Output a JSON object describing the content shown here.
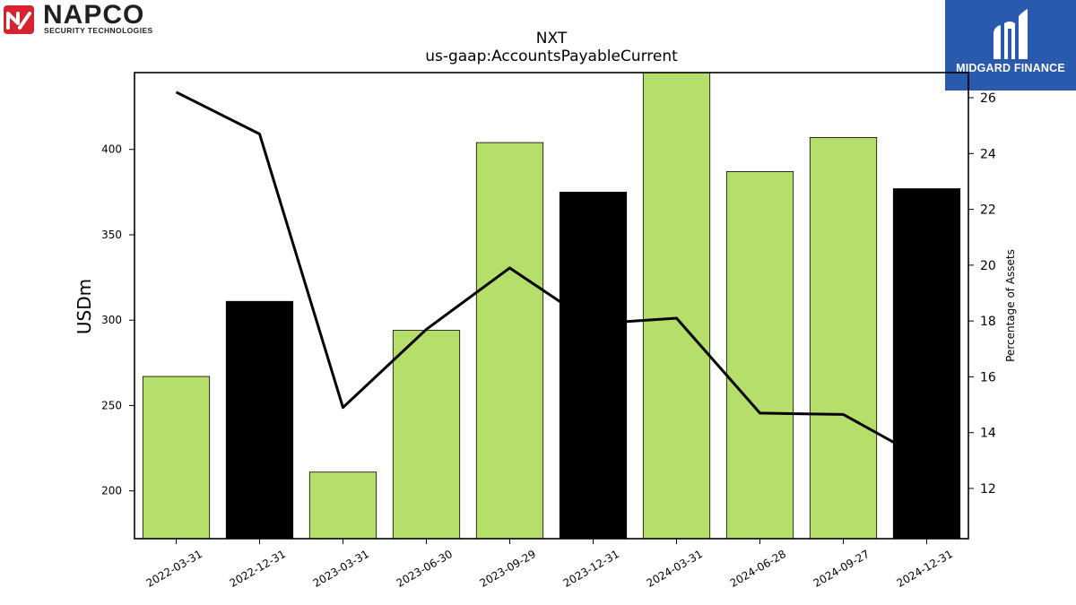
{
  "logos": {
    "left": {
      "name": "NAPCO",
      "tagline": "SECURITY TECHNOLOGIES"
    },
    "right": {
      "name": "MIDGARD FINANCE"
    }
  },
  "chart_data": {
    "type": "bar",
    "title": "NXT",
    "subtitle": "us-gaap:AccountsPayableCurrent",
    "ylabel": "USDm",
    "y2label": "Percentage of Assets",
    "categories": [
      "2022-03-31",
      "2022-12-31",
      "2023-03-31",
      "2023-06-30",
      "2023-09-29",
      "2023-12-31",
      "2024-03-31",
      "2024-06-28",
      "2024-09-27",
      "2024-12-31"
    ],
    "values": [
      267,
      311,
      211,
      294,
      404,
      375,
      448,
      387,
      407,
      377
    ],
    "bar_colors": [
      "#b5de6a",
      "#000000",
      "#b5de6a",
      "#b5de6a",
      "#b5de6a",
      "#000000",
      "#b5de6a",
      "#b5de6a",
      "#b5de6a",
      "#000000"
    ],
    "line_values": [
      26.2,
      24.7,
      14.9,
      17.7,
      19.9,
      17.9,
      18.1,
      14.7,
      14.65,
      13.0
    ],
    "ylim": [
      172,
      445
    ],
    "y2lim": [
      10.2,
      26.9
    ],
    "yticks": [
      200,
      250,
      300,
      350,
      400
    ],
    "y2ticks": [
      12,
      14,
      16,
      18,
      20,
      22,
      24,
      26
    ],
    "grid": false,
    "legend": "none"
  }
}
